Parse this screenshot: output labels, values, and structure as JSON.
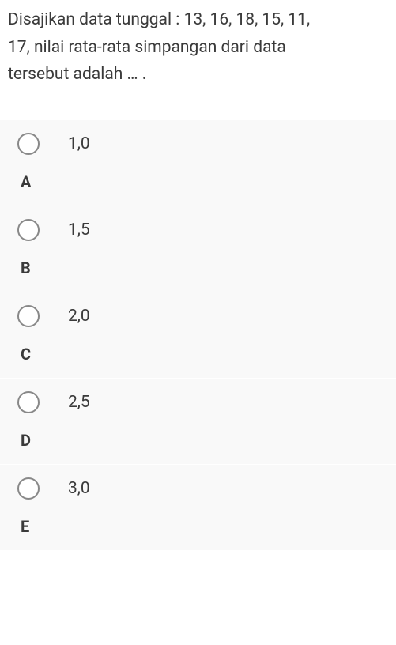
{
  "question": {
    "line1": "Disajikan data tunggal : 13, 16, 18, 15, 11,",
    "line2": "17, nilai rata-rata simpangan dari data",
    "line3": "tersebut adalah … ."
  },
  "options": [
    {
      "letter": "A",
      "value": "1,0"
    },
    {
      "letter": "B",
      "value": "1,5"
    },
    {
      "letter": "C",
      "value": "2,0"
    },
    {
      "letter": "D",
      "value": "2,5"
    },
    {
      "letter": "E",
      "value": "3,0"
    }
  ],
  "styles": {
    "background_color": "#ffffff",
    "option_background": "#f9f9f9",
    "text_color": "#3a3a3a",
    "radio_border_color": "#888888",
    "question_fontsize": 21,
    "option_value_fontsize": 21,
    "option_letter_fontsize": 20,
    "radio_size": 28
  }
}
